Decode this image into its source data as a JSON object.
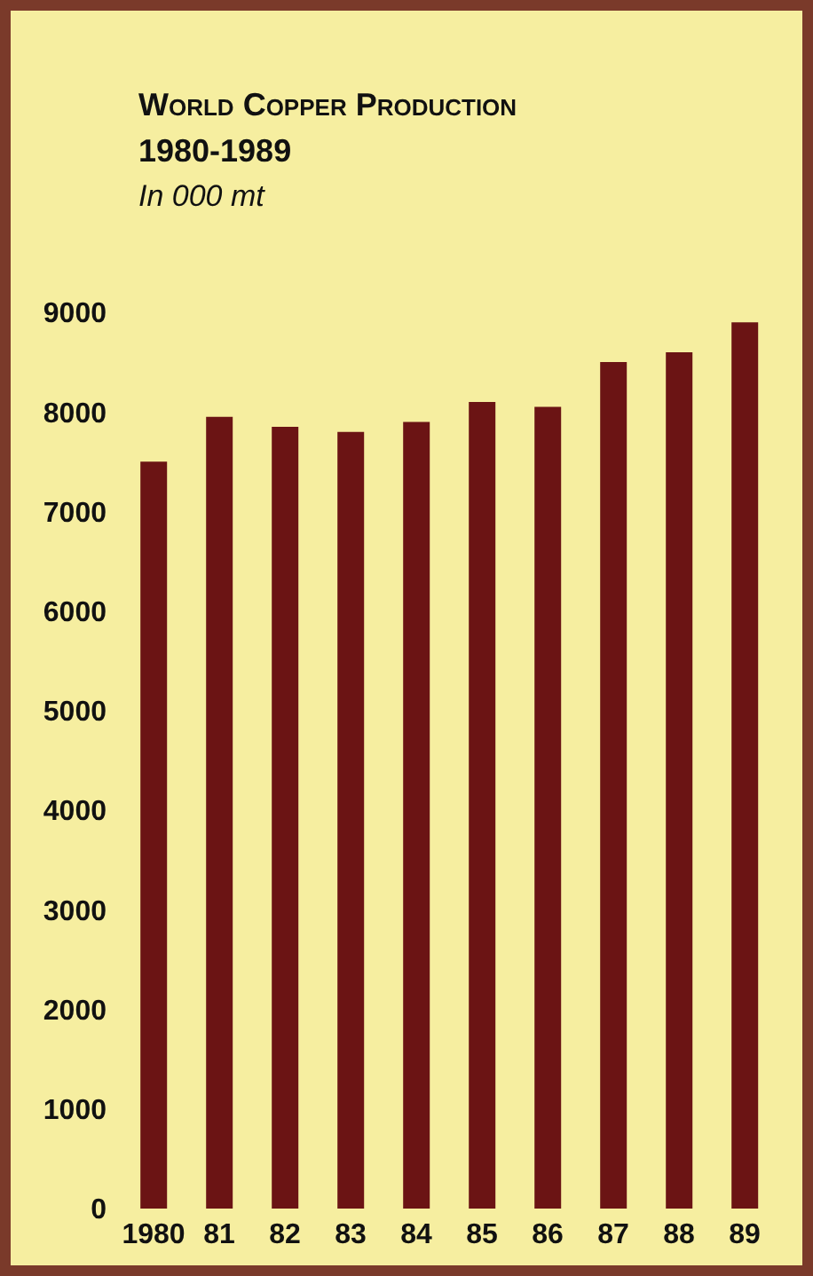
{
  "chart_data": {
    "type": "bar",
    "title": "World Copper Production",
    "subtitle": "1980-1989",
    "ylabel": "In 000 mt",
    "categories": [
      "1980",
      "81",
      "82",
      "83",
      "84",
      "85",
      "86",
      "87",
      "88",
      "89"
    ],
    "values": [
      7500,
      7950,
      7850,
      7800,
      7900,
      8100,
      8050,
      8500,
      8600,
      8900
    ],
    "color": "#6b1414",
    "ylim": [
      0,
      9000
    ],
    "yticks": [
      0,
      1000,
      2000,
      3000,
      4000,
      5000,
      6000,
      7000,
      8000,
      9000
    ],
    "grid": false,
    "legend": false
  }
}
